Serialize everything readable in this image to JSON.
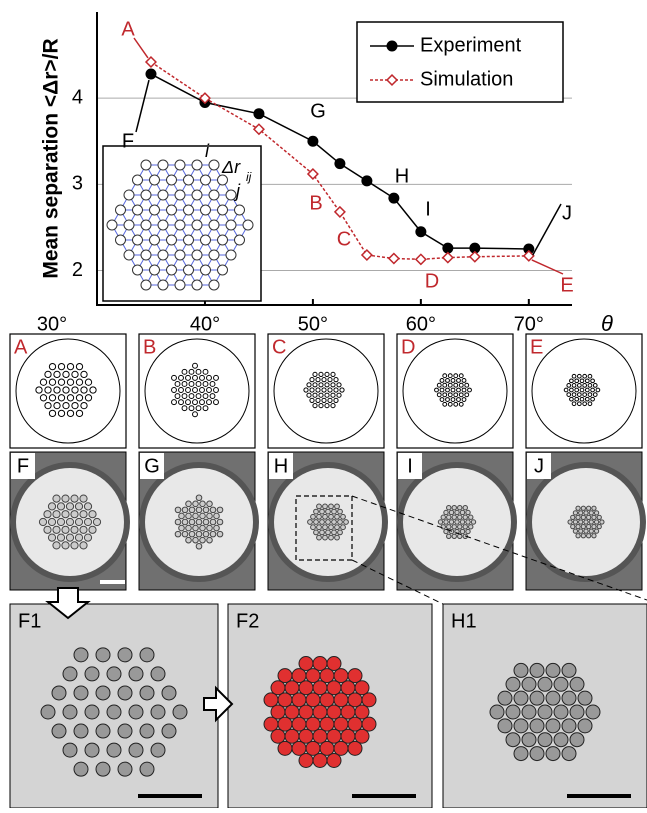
{
  "chart_data": {
    "type": "line",
    "y_label": "Mean separation <Δr>/R",
    "x_label": "θ",
    "xlim": [
      30,
      74
    ],
    "ylim": [
      1.6,
      5
    ],
    "xticks": [
      {
        "value": 30,
        "label": "30°"
      },
      {
        "value": 40,
        "label": "40°"
      },
      {
        "value": 50,
        "label": "50°"
      },
      {
        "value": 60,
        "label": "60°"
      },
      {
        "value": 70,
        "label": "70°"
      }
    ],
    "yticks": [
      2,
      3,
      4
    ],
    "grid": true,
    "legend": "upper right",
    "series": [
      {
        "name": "Experiment",
        "color": "#000000",
        "marker": "circle",
        "x": [
          35,
          40,
          45,
          50,
          52.5,
          55,
          57.5,
          60,
          62.5,
          65,
          70
        ],
        "values": [
          4.28,
          3.95,
          3.82,
          3.5,
          3.24,
          3.04,
          2.84,
          2.45,
          2.26,
          2.26,
          2.25
        ]
      },
      {
        "name": "Simulation",
        "color": "#c0282d",
        "marker": "diamond",
        "x": [
          35,
          40,
          45,
          50,
          52.5,
          55,
          57.5,
          60,
          62.5,
          65,
          70
        ],
        "values": [
          4.42,
          4.0,
          3.64,
          3.12,
          2.68,
          2.18,
          2.14,
          2.13,
          2.15,
          2.16,
          2.17
        ]
      }
    ],
    "annotations": [
      "A",
      "B",
      "C",
      "D",
      "E",
      "F",
      "G",
      "H",
      "I",
      "J"
    ],
    "inset_labels": [
      "i",
      "Δr",
      "ij",
      "j"
    ]
  },
  "panels": {
    "simulation": [
      "A",
      "B",
      "C",
      "D",
      "E"
    ],
    "experiment": [
      "F",
      "G",
      "H",
      "I",
      "J"
    ],
    "zoom": [
      "F1",
      "F2",
      "H1"
    ]
  }
}
